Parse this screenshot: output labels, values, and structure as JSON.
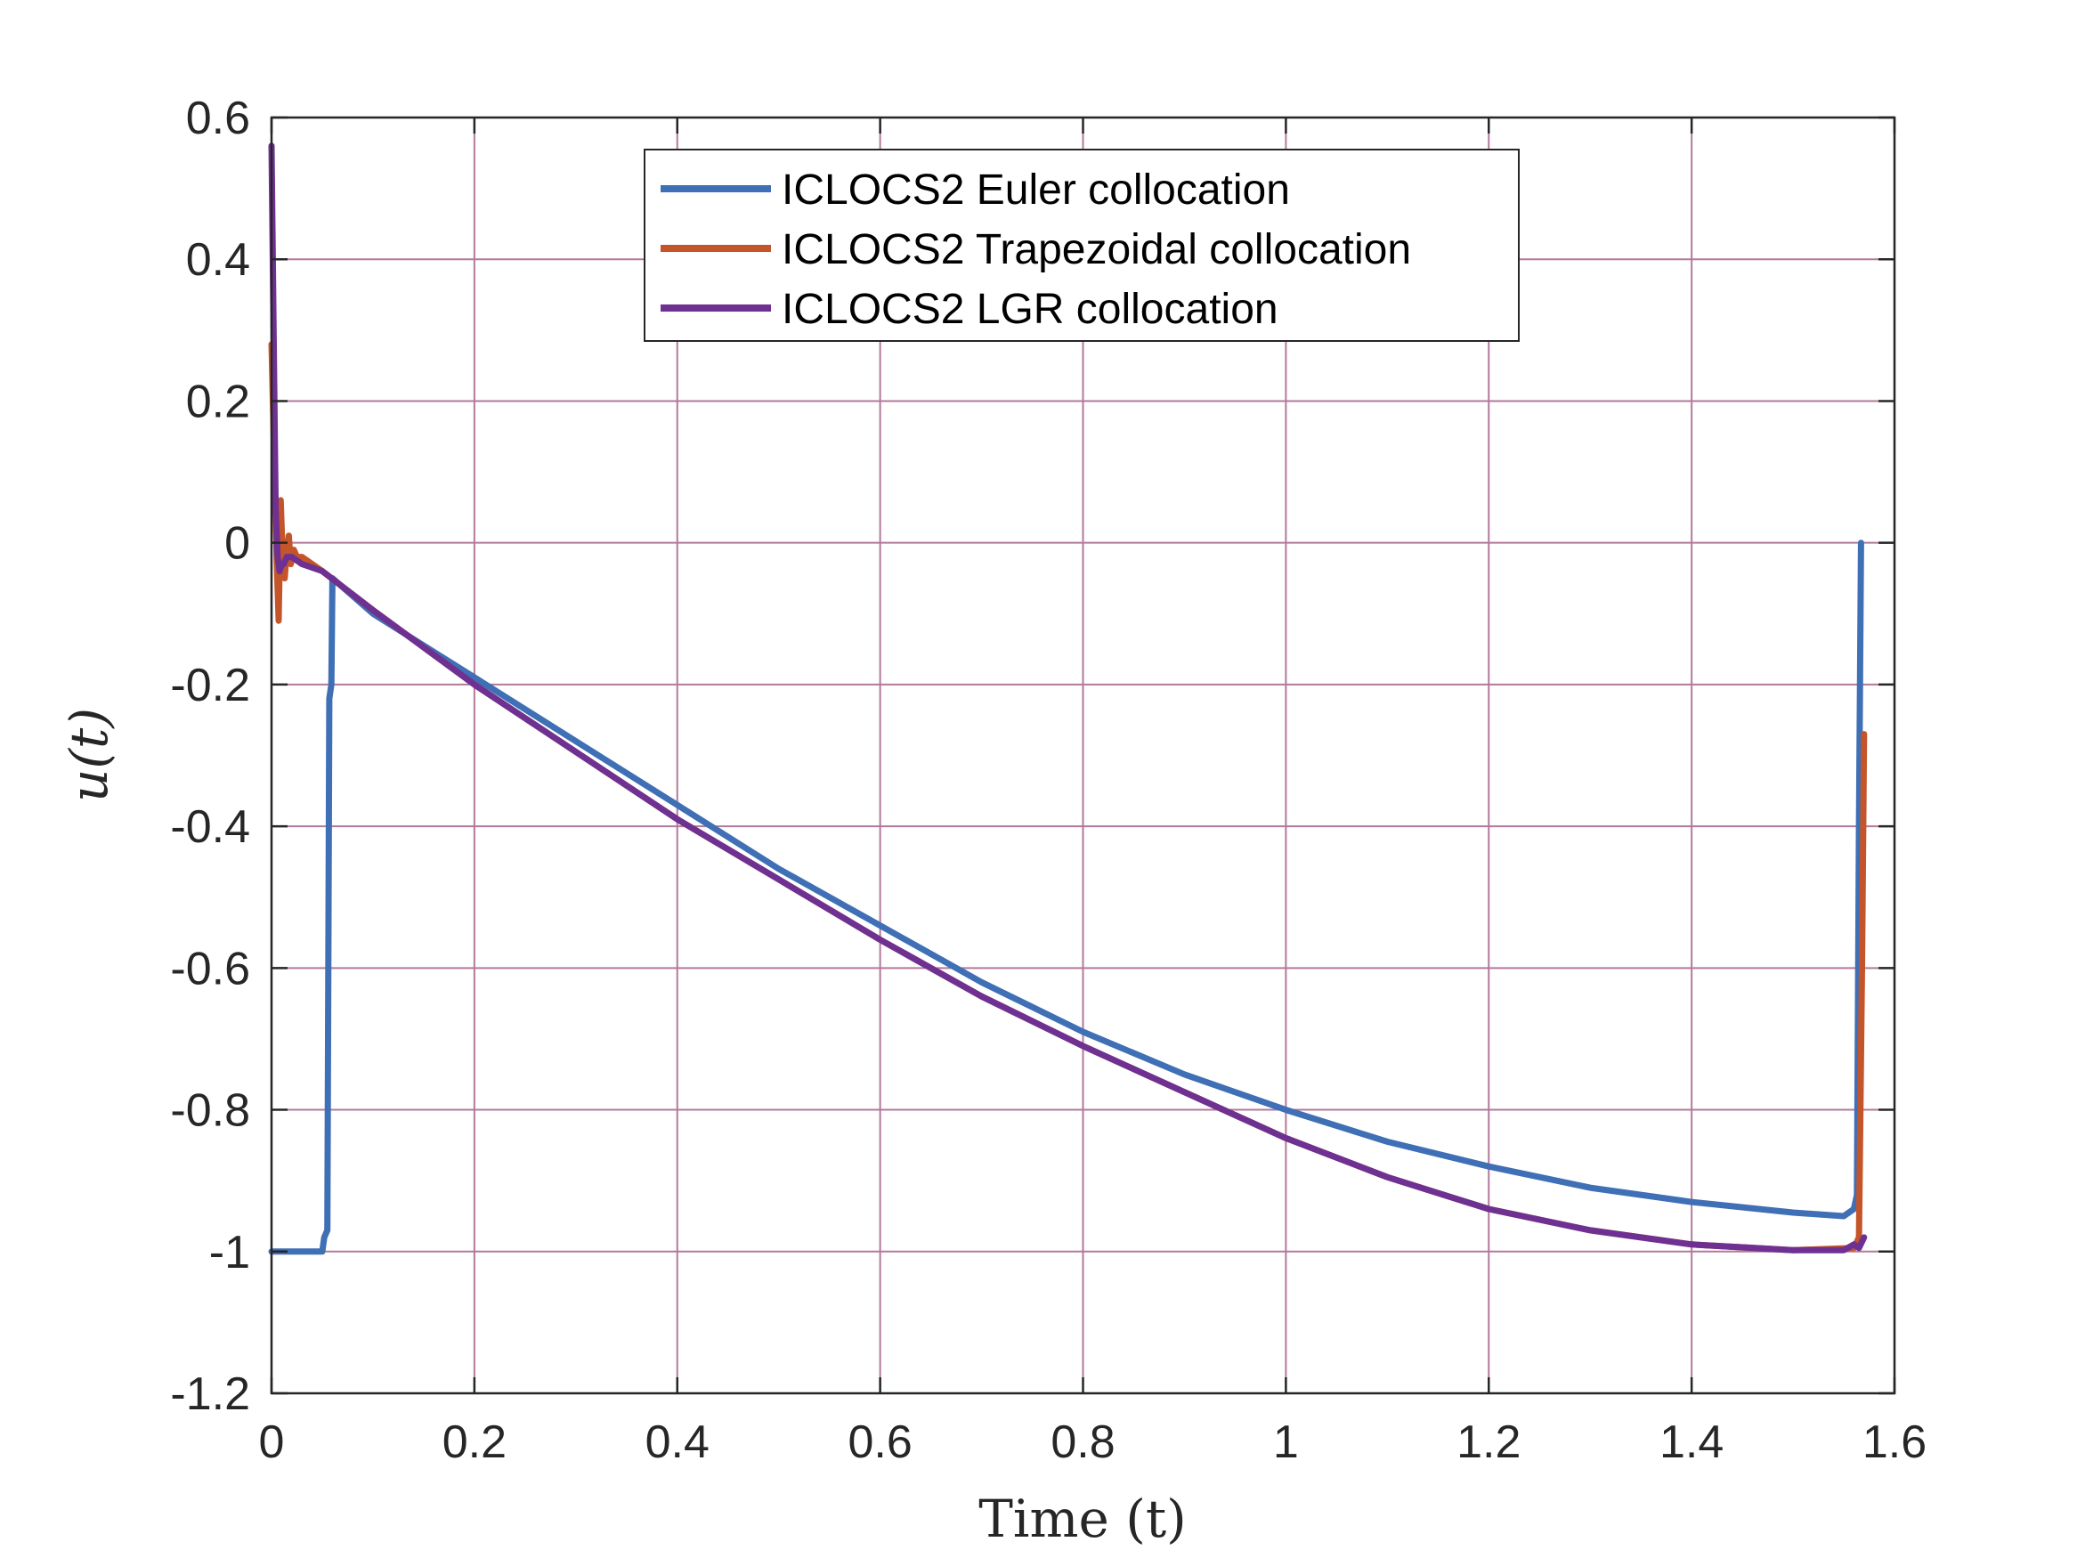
{
  "chart_data": {
    "type": "line",
    "title": "",
    "xlabel": "Time (t)",
    "ylabel": "u(t)",
    "xlim": [
      0,
      1.6
    ],
    "ylim": [
      -1.2,
      0.6
    ],
    "x_ticks": [
      0,
      0.2,
      0.4,
      0.6,
      0.8,
      1,
      1.2,
      1.4,
      1.6
    ],
    "x_tick_labels": [
      "0",
      "0.2",
      "0.4",
      "0.6",
      "0.8",
      "1",
      "1.2",
      "1.4",
      "1.6"
    ],
    "y_ticks": [
      0.6,
      0.4,
      0.2,
      0,
      -0.2,
      -0.4,
      -0.6,
      -0.8,
      -1,
      -1.2
    ],
    "y_tick_labels": [
      "0.6",
      "0.4",
      "0.2",
      "0",
      "-0.2",
      "-0.4",
      "-0.6",
      "-0.8",
      "-1",
      "-1.2"
    ],
    "grid": true,
    "legend_position": "top-center",
    "series": [
      {
        "name": "ICLOCS2 Euler collocation",
        "color": "#3f6fb5",
        "x": [
          0,
          0.03,
          0.05,
          0.052,
          0.055,
          0.057,
          0.059,
          0.06,
          0.1,
          0.2,
          0.3,
          0.4,
          0.5,
          0.6,
          0.7,
          0.8,
          0.9,
          1.0,
          1.1,
          1.2,
          1.3,
          1.4,
          1.5,
          1.55,
          1.56,
          1.563,
          1.565,
          1.567
        ],
        "y": [
          -1,
          -1,
          -1,
          -0.98,
          -0.97,
          -0.22,
          -0.2,
          -0.05,
          -0.1,
          -0.19,
          -0.28,
          -0.37,
          -0.46,
          -0.54,
          -0.62,
          -0.69,
          -0.75,
          -0.8,
          -0.845,
          -0.88,
          -0.91,
          -0.93,
          -0.945,
          -0.95,
          -0.94,
          -0.92,
          -0.4,
          0
        ]
      },
      {
        "name": "ICLOCS2 Trapezoidal collocation",
        "color": "#c4552b",
        "x": [
          0,
          0.003,
          0.005,
          0.007,
          0.009,
          0.011,
          0.013,
          0.015,
          0.017,
          0.019,
          0.022,
          0.025,
          0.03,
          0.05,
          0.1,
          0.2,
          0.3,
          0.4,
          0.5,
          0.6,
          0.7,
          0.8,
          0.9,
          1.0,
          1.1,
          1.2,
          1.3,
          1.4,
          1.5,
          1.56,
          1.565,
          1.568,
          1.57
        ],
        "y": [
          0.28,
          0.1,
          -0.02,
          -0.11,
          0.06,
          -0.02,
          -0.05,
          -0.01,
          0.01,
          -0.03,
          -0.01,
          -0.02,
          -0.02,
          -0.04,
          -0.095,
          -0.2,
          -0.295,
          -0.39,
          -0.475,
          -0.56,
          -0.64,
          -0.71,
          -0.775,
          -0.84,
          -0.895,
          -0.94,
          -0.97,
          -0.99,
          -0.998,
          -0.995,
          -0.98,
          -0.6,
          -0.27
        ]
      },
      {
        "name": "ICLOCS2 LGR collocation",
        "color": "#6e3192",
        "x": [
          0,
          0.002,
          0.004,
          0.006,
          0.008,
          0.01,
          0.012,
          0.015,
          0.02,
          0.03,
          0.05,
          0.1,
          0.2,
          0.3,
          0.4,
          0.5,
          0.6,
          0.7,
          0.8,
          0.9,
          1.0,
          1.1,
          1.2,
          1.3,
          1.4,
          1.5,
          1.55,
          1.56,
          1.565,
          1.57
        ],
        "y": [
          0.56,
          0.3,
          0.05,
          -0.02,
          -0.04,
          -0.03,
          -0.03,
          -0.02,
          -0.02,
          -0.03,
          -0.04,
          -0.095,
          -0.2,
          -0.295,
          -0.39,
          -0.475,
          -0.56,
          -0.64,
          -0.71,
          -0.775,
          -0.84,
          -0.895,
          -0.94,
          -0.97,
          -0.99,
          -0.998,
          -0.998,
          -0.99,
          -0.995,
          -0.98
        ]
      }
    ]
  }
}
